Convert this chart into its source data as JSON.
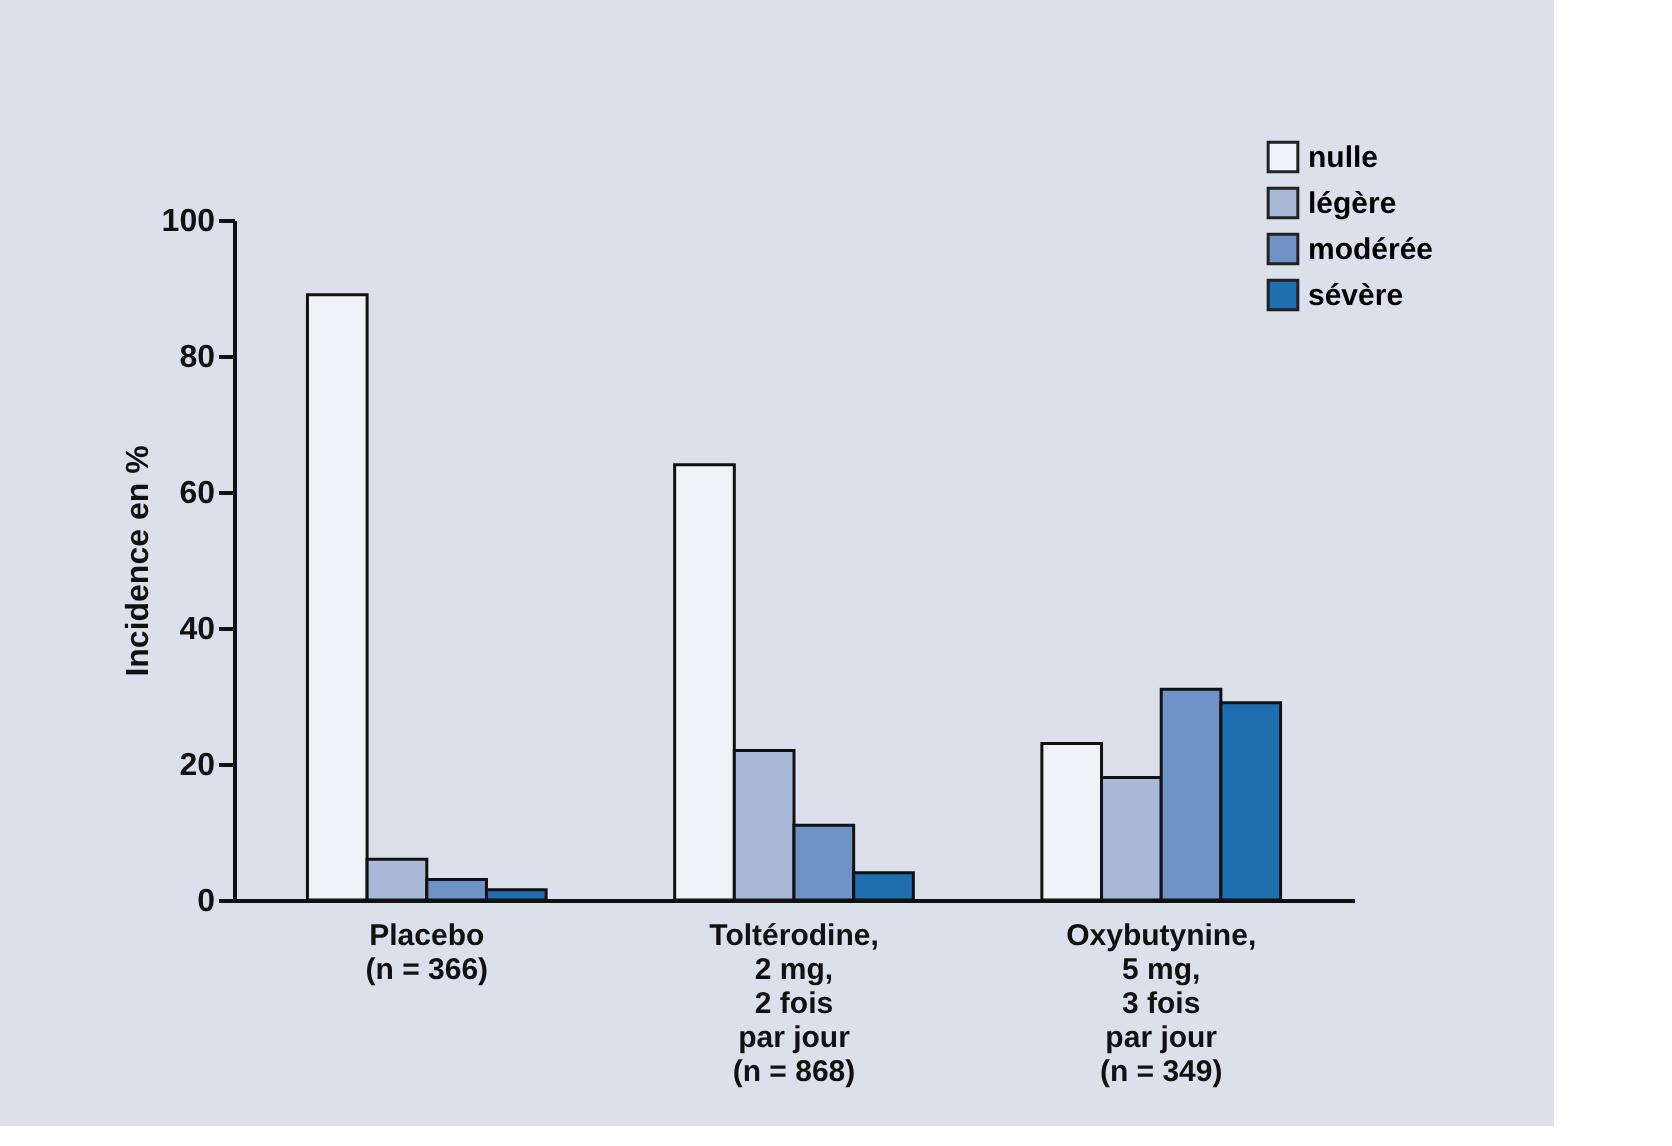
{
  "chart_data": {
    "type": "bar",
    "ylabel": "Incidence en %",
    "categories": [
      "Placebo\n(n = 366)",
      "Toltérodine,\n2 mg,\n2 fois\npar jour\n(n = 868)",
      "Oxybutynine,\n5 mg,\n3 fois\npar jour\n(n = 349)"
    ],
    "series": [
      {
        "name": "nulle",
        "color": "#f0f2f8",
        "values": [
          89,
          64,
          23
        ]
      },
      {
        "name": "légère",
        "color": "#a9b9d8",
        "values": [
          6,
          22,
          18
        ]
      },
      {
        "name": "modérée",
        "color": "#6f93c6",
        "values": [
          3,
          11,
          31
        ]
      },
      {
        "name": "sévère",
        "color": "#1f6eb0",
        "values": [
          1.5,
          4,
          29
        ]
      }
    ],
    "ylim": [
      0,
      100
    ],
    "yticks": [
      0,
      20,
      40,
      60,
      80,
      100
    ],
    "grid": false,
    "legend": "top right"
  }
}
